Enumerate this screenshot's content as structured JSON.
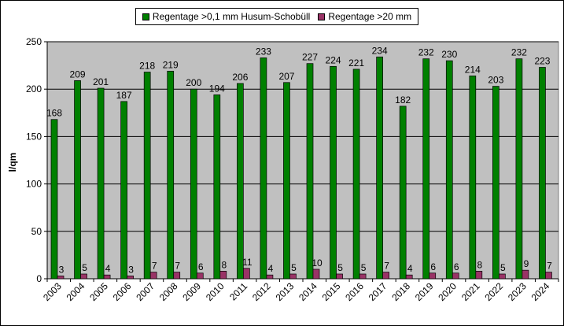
{
  "chart_data": {
    "type": "bar",
    "title": "",
    "xlabel": "",
    "ylabel": "l/qm",
    "ylim": [
      0,
      250
    ],
    "yticks": [
      0,
      50,
      100,
      150,
      200,
      250
    ],
    "grid": true,
    "legend_position": "top-center",
    "categories": [
      "2003",
      "2004",
      "2005",
      "2006",
      "2007",
      "2008",
      "2009",
      "2010",
      "2011",
      "2012",
      "2013",
      "2014",
      "2015",
      "2016",
      "2017",
      "2018",
      "2019",
      "2020",
      "2021",
      "2022",
      "2023",
      "2024"
    ],
    "series": [
      {
        "name": "Regentage >0,1 mm Husum-Schobüll",
        "color": "#008000",
        "values": [
          168,
          209,
          201,
          187,
          218,
          219,
          200,
          194,
          206,
          233,
          207,
          227,
          224,
          221,
          234,
          182,
          232,
          230,
          214,
          203,
          232,
          223
        ]
      },
      {
        "name": "Regentage >20 mm",
        "color": "#993366",
        "values": [
          3,
          5,
          4,
          3,
          7,
          7,
          6,
          8,
          11,
          4,
          5,
          10,
          5,
          5,
          7,
          4,
          6,
          6,
          8,
          5,
          9,
          7
        ]
      }
    ],
    "plot_background": "#c0c0c0"
  }
}
